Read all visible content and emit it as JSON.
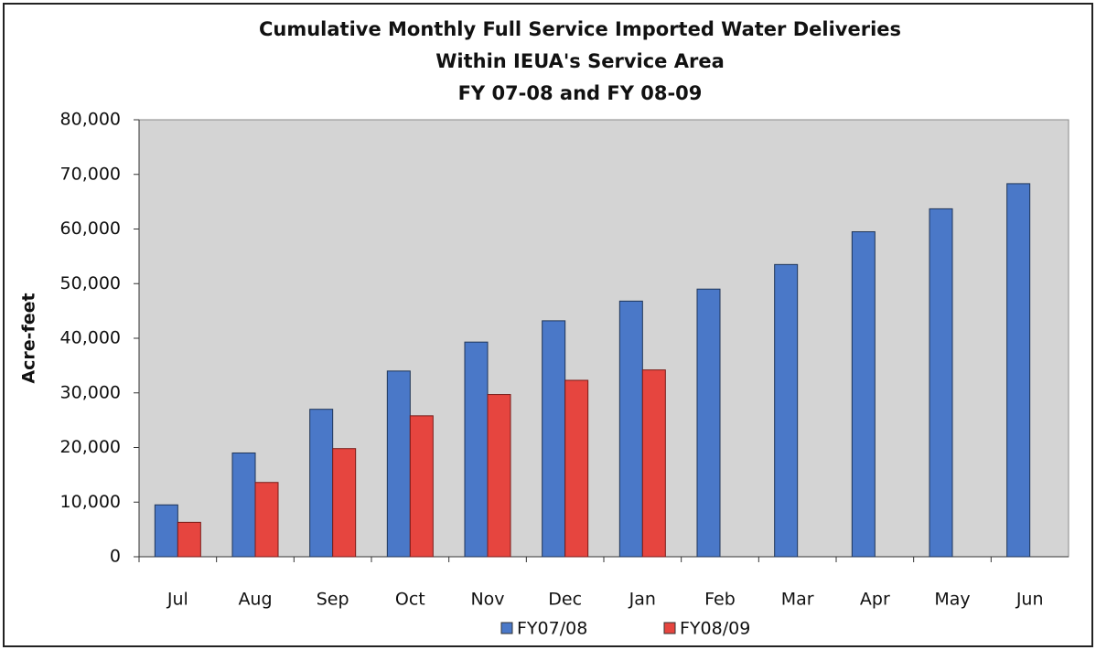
{
  "chart_data": {
    "type": "bar",
    "title": [
      "Cumulative Monthly Full Service Imported Water Deliveries",
      "Within IEUA's  Service Area",
      "FY 07-08 and FY 08-09"
    ],
    "y_label": "Acre-feet",
    "categories": [
      "Jul",
      "Aug",
      "Sep",
      "Oct",
      "Nov",
      "Dec",
      "Jan",
      "Feb",
      "Mar",
      "Apr",
      "May",
      "Jun"
    ],
    "series": [
      {
        "name": "FY07/08",
        "color": "#4a78c8",
        "values": [
          9500,
          19000,
          27000,
          34000,
          39300,
          43200,
          46800,
          49000,
          53500,
          59500,
          63700,
          68300
        ]
      },
      {
        "name": "FY08/09",
        "color": "#e6453f",
        "values": [
          6300,
          13600,
          19800,
          25800,
          29700,
          32300,
          34200,
          null,
          null,
          null,
          null,
          null
        ]
      }
    ],
    "ylim": [
      0,
      80000
    ],
    "yticks": [
      0,
      {
        "value": 10000,
        "label": "10,000"
      },
      {
        "value": 20000,
        "label": "20,000"
      },
      {
        "value": 30000,
        "label": "30,000"
      },
      {
        "value": 40000,
        "label": "40,000"
      },
      {
        "value": 50000,
        "label": "50,000"
      },
      {
        "value": 60000,
        "label": "60,000"
      },
      {
        "value": 70000,
        "label": "70,000"
      },
      {
        "value": 80000,
        "label": "80,000"
      }
    ],
    "legend": "bottom"
  }
}
